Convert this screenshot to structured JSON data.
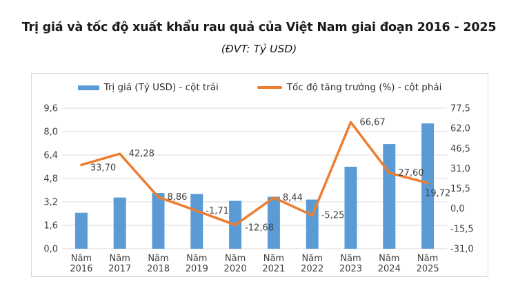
{
  "page": {
    "title": "Trị giá và tốc độ xuất khẩu rau quả của Việt Nam giai đoạn 2016 - 2025",
    "subtitle": "(ĐVT: Tỷ USD)"
  },
  "legend": {
    "bar_label": "Trị giá (Tỷ USD) - cột trái",
    "line_label": "Tốc độ tăng trưởng (%) - cột phải"
  },
  "colors": {
    "bar": "#5B9BD5",
    "line": "#ED7D31",
    "grid": "#D9D9D9",
    "axis_text": "#3F3F3F",
    "card_border": "#D9D9D9",
    "title_text": "#1A1A1A"
  },
  "chart_data": {
    "type": "combo-bar-line",
    "title": "Trị giá và tốc độ xuất khẩu rau quả của Việt Nam giai đoạn 2016 - 2025 (ĐVT: Tỷ USD)",
    "grid": true,
    "legend_position": "top",
    "categories": [
      "Năm 2016",
      "Năm 2017",
      "Năm 2018",
      "Năm 2019",
      "Năm 2020",
      "Năm 2021",
      "Năm 2022",
      "Năm 2023",
      "Năm 2024",
      "Năm 2025"
    ],
    "series": [
      {
        "name": "Trị giá (Tỷ USD) - cột trái",
        "type": "bar",
        "axis": "left",
        "color": "#5B9BD5",
        "values": [
          2.46,
          3.5,
          3.81,
          3.74,
          3.27,
          3.55,
          3.36,
          5.6,
          7.15,
          8.56
        ]
      },
      {
        "name": "Tốc độ tăng trưởng (%) - cột phải",
        "type": "line",
        "axis": "right",
        "color": "#ED7D31",
        "values": [
          33.7,
          42.28,
          8.86,
          -1.71,
          -12.68,
          8.44,
          -5.25,
          66.67,
          27.6,
          19.72
        ],
        "point_labels": [
          "33,70",
          "42,28",
          "8,86",
          "-1,71",
          "-12,68",
          "8,44",
          "-5,25",
          "66,67",
          "27,60",
          "19,72"
        ]
      }
    ],
    "left_axis": {
      "range": [
        0,
        9.6
      ],
      "tick_labels_bottom_to_top": [
        "0,0",
        "1,6",
        "3,2",
        "4,8",
        "6,4",
        "8,0",
        "9,6"
      ]
    },
    "right_axis": {
      "range": [
        -31,
        77.5
      ],
      "tick_labels_bottom_to_top": [
        "-31,0",
        "-15,5",
        "0,0",
        "15,5",
        "31,0",
        "46,5",
        "62,0",
        "77,5"
      ]
    }
  }
}
